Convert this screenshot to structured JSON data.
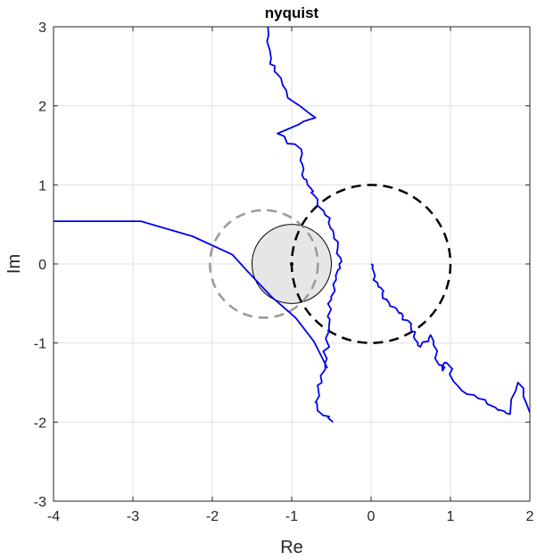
{
  "chart_data": {
    "type": "line",
    "title": "nyquist",
    "xlabel": "Re",
    "ylabel": "Im",
    "xlim": [
      -4,
      2
    ],
    "ylim": [
      -3,
      3
    ],
    "xticks": [
      "-4",
      "-3",
      "-2",
      "-1",
      "0",
      "1",
      "2"
    ],
    "yticks": [
      "-3",
      "-2",
      "-1",
      "0",
      "1",
      "2",
      "3"
    ],
    "grid": true,
    "colors": {
      "series": "#0000ee",
      "unit_circle": "#000000",
      "gray_circle": "#999999",
      "disk_fill": "#e6e6e6",
      "disk_edge": "#000000"
    },
    "shapes": {
      "unit_circle": {
        "center": [
          0,
          0
        ],
        "radius": 1,
        "style": "dashed"
      },
      "gray_circle": {
        "center": [
          -1.35,
          0
        ],
        "radius": 0.68,
        "style": "dashed"
      },
      "disk": {
        "center": [
          -1,
          0
        ],
        "radius": 0.5,
        "style": "filled"
      },
      "critical_point": {
        "x": -1,
        "y": 0
      }
    },
    "series": [
      {
        "points": [
          [
            -4.0,
            0.54
          ],
          [
            -2.9,
            0.54
          ],
          [
            -2.25,
            0.35
          ],
          [
            -1.75,
            0.12
          ],
          [
            -1.55,
            -0.1
          ],
          [
            -1.25,
            -0.42
          ],
          [
            -0.95,
            -0.68
          ],
          [
            -0.72,
            -0.98
          ],
          [
            -0.55,
            -1.32
          ]
        ]
      },
      {
        "points": [
          [
            -1.3,
            3.0
          ],
          [
            -1.26,
            2.6
          ],
          [
            -1.18,
            2.4
          ],
          [
            -1.05,
            2.1
          ],
          [
            -0.7,
            1.85
          ],
          [
            -1.18,
            1.65
          ],
          [
            -0.88,
            1.45
          ],
          [
            -0.85,
            1.2
          ],
          [
            -0.8,
            1.0
          ],
          [
            -0.7,
            0.85
          ],
          [
            -0.58,
            0.62
          ],
          [
            -0.48,
            0.42
          ],
          [
            -0.42,
            0.2
          ],
          [
            -0.4,
            0.0
          ],
          [
            -0.44,
            -0.2
          ],
          [
            -0.5,
            -0.45
          ],
          [
            -0.52,
            -0.7
          ],
          [
            -0.55,
            -1.0
          ],
          [
            -0.58,
            -1.25
          ],
          [
            -0.62,
            -1.5
          ],
          [
            -0.7,
            -1.75
          ],
          [
            -0.62,
            -1.9
          ],
          [
            -0.48,
            -2.0
          ]
        ]
      },
      {
        "points": [
          [
            0.0,
            0.0
          ],
          [
            0.05,
            -0.15
          ],
          [
            0.12,
            -0.3
          ],
          [
            0.2,
            -0.45
          ],
          [
            0.3,
            -0.55
          ],
          [
            0.4,
            -0.65
          ],
          [
            0.5,
            -0.78
          ],
          [
            0.55,
            -0.95
          ],
          [
            0.62,
            -1.05
          ],
          [
            0.75,
            -0.9
          ],
          [
            0.82,
            -1.15
          ],
          [
            0.9,
            -1.35
          ],
          [
            0.95,
            -1.25
          ],
          [
            1.1,
            -1.55
          ],
          [
            1.35,
            -1.7
          ],
          [
            1.6,
            -1.85
          ],
          [
            1.75,
            -1.9
          ],
          [
            1.85,
            -1.5
          ],
          [
            2.0,
            -1.88
          ]
        ]
      }
    ]
  }
}
